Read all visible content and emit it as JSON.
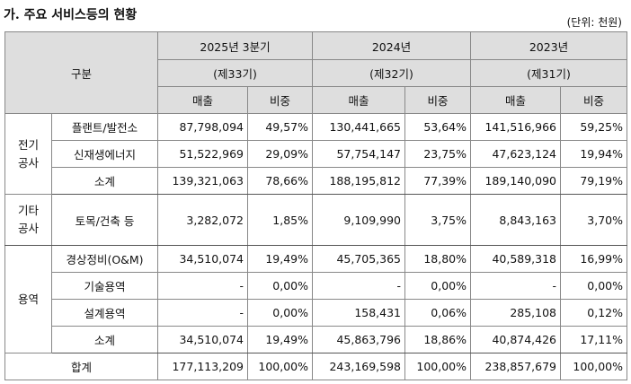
{
  "title": "가. 주요 서비스등의 현황",
  "unit": "(단위: 천원)",
  "header": {
    "category": "구분",
    "periods": [
      {
        "year": "2025년 3분기",
        "term": "(제33기)"
      },
      {
        "year": "2024년",
        "term": "(제32기)"
      },
      {
        "year": "2023년",
        "term": "(제31기)"
      }
    ],
    "sales": "매출",
    "ratio": "비중"
  },
  "groups": {
    "electric": "전기\n공사",
    "other": "기타\n공사",
    "service": "용역"
  },
  "rows": [
    {
      "sub": "플랜트/발전소",
      "v": [
        "87,798,094",
        "49,57%",
        "130,441,665",
        "53,64%",
        "141,516,966",
        "59,25%"
      ]
    },
    {
      "sub": "신재생에너지",
      "v": [
        "51,522,969",
        "29,09%",
        "57,754,147",
        "23,75%",
        "47,623,124",
        "19,94%"
      ]
    },
    {
      "sub": "소계",
      "v": [
        "139,321,063",
        "78,66%",
        "188,195,812",
        "77,39%",
        "189,140,090",
        "79,19%"
      ]
    },
    {
      "sub": "토목/건축 등",
      "v": [
        "3,282,072",
        "1,85%",
        "9,109,990",
        "3,75%",
        "8,843,163",
        "3,70%"
      ]
    },
    {
      "sub": "경상정비(O&M)",
      "v": [
        "34,510,074",
        "19,49%",
        "45,705,365",
        "18,80%",
        "40,589,318",
        "16,99%"
      ]
    },
    {
      "sub": "기술용역",
      "v": [
        "-",
        "0,00%",
        "-",
        "0,00%",
        "-",
        "0,00%"
      ]
    },
    {
      "sub": "설계용역",
      "v": [
        "-",
        "0,00%",
        "158,431",
        "0,06%",
        "285,108",
        "0,12%"
      ]
    },
    {
      "sub": "소계",
      "v": [
        "34,510,074",
        "19,49%",
        "45,863,796",
        "18,86%",
        "40,874,426",
        "17,11%"
      ]
    }
  ],
  "total": {
    "label": "합계",
    "v": [
      "177,113,209",
      "100,00%",
      "243,169,598",
      "100,00%",
      "238,857,679",
      "100,00%"
    ]
  }
}
